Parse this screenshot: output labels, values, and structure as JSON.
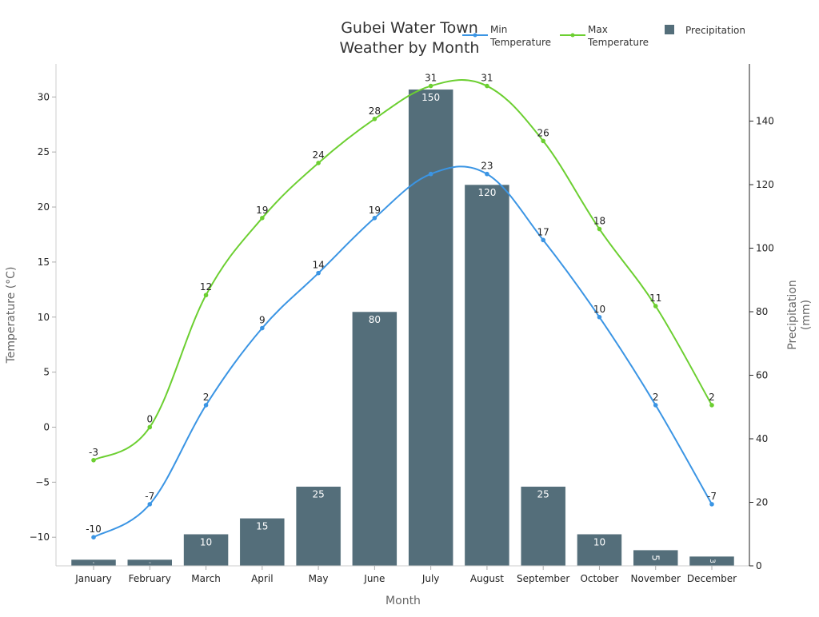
{
  "chart_data": {
    "type": "bar+line",
    "title_lines": [
      "Gubei Water Town",
      "Weather by Month"
    ],
    "xlabel": "Month",
    "ylabel_left": "Temperature (°C)",
    "ylabel_right_lines": [
      "Precipitation",
      "(mm)"
    ],
    "categories": [
      "January",
      "February",
      "March",
      "April",
      "May",
      "June",
      "July",
      "August",
      "September",
      "October",
      "November",
      "December"
    ],
    "ylim_left": [
      -12.6,
      33
    ],
    "ylim_right": [
      0,
      158
    ],
    "left_ticks": [
      "30",
      "25",
      "20",
      "15",
      "10",
      "5",
      "0",
      "−5",
      "−10"
    ],
    "left_tick_values": [
      30,
      25,
      20,
      15,
      10,
      5,
      0,
      -5,
      -10
    ],
    "right_ticks": [
      "140",
      "120",
      "100",
      "80",
      "60",
      "40",
      "20",
      "0"
    ],
    "right_tick_values": [
      140,
      120,
      100,
      80,
      60,
      40,
      20,
      0
    ],
    "series": [
      {
        "name": "Min Temperature",
        "legend_lines": [
          "Min",
          "Temperature"
        ],
        "type": "line",
        "axis": "left",
        "color": "#3b95e4",
        "values": [
          -10,
          -7,
          2,
          9,
          14,
          19,
          23,
          23,
          17,
          10,
          2,
          -7
        ]
      },
      {
        "name": "Max Temperature",
        "legend_lines": [
          "Max",
          "Temperature"
        ],
        "type": "line",
        "axis": "left",
        "color": "#6ccf31",
        "values": [
          -3,
          0,
          12,
          19,
          24,
          28,
          31,
          31,
          26,
          18,
          11,
          2
        ]
      },
      {
        "name": "Precipitation",
        "legend_lines": [
          "Precipitation"
        ],
        "type": "bar",
        "axis": "right",
        "color": "#546e7a",
        "values": [
          2,
          2,
          10,
          15,
          25,
          80,
          150,
          120,
          25,
          10,
          5,
          3
        ]
      }
    ],
    "min_labels": [
      "-10",
      "-7",
      "2",
      "9",
      "14",
      "19",
      "",
      "23",
      "17",
      "10",
      "2",
      "-7"
    ],
    "max_labels": [
      "-3",
      "0",
      "12",
      "19",
      "24",
      "28",
      "31",
      "31",
      "26",
      "18",
      "11",
      "2"
    ],
    "bar_labels": [
      "2",
      "2",
      "10",
      "15",
      "25",
      "80",
      "150",
      "120",
      "25",
      "10",
      "5",
      "3"
    ],
    "grid": false,
    "legend_placement": "top-right"
  }
}
